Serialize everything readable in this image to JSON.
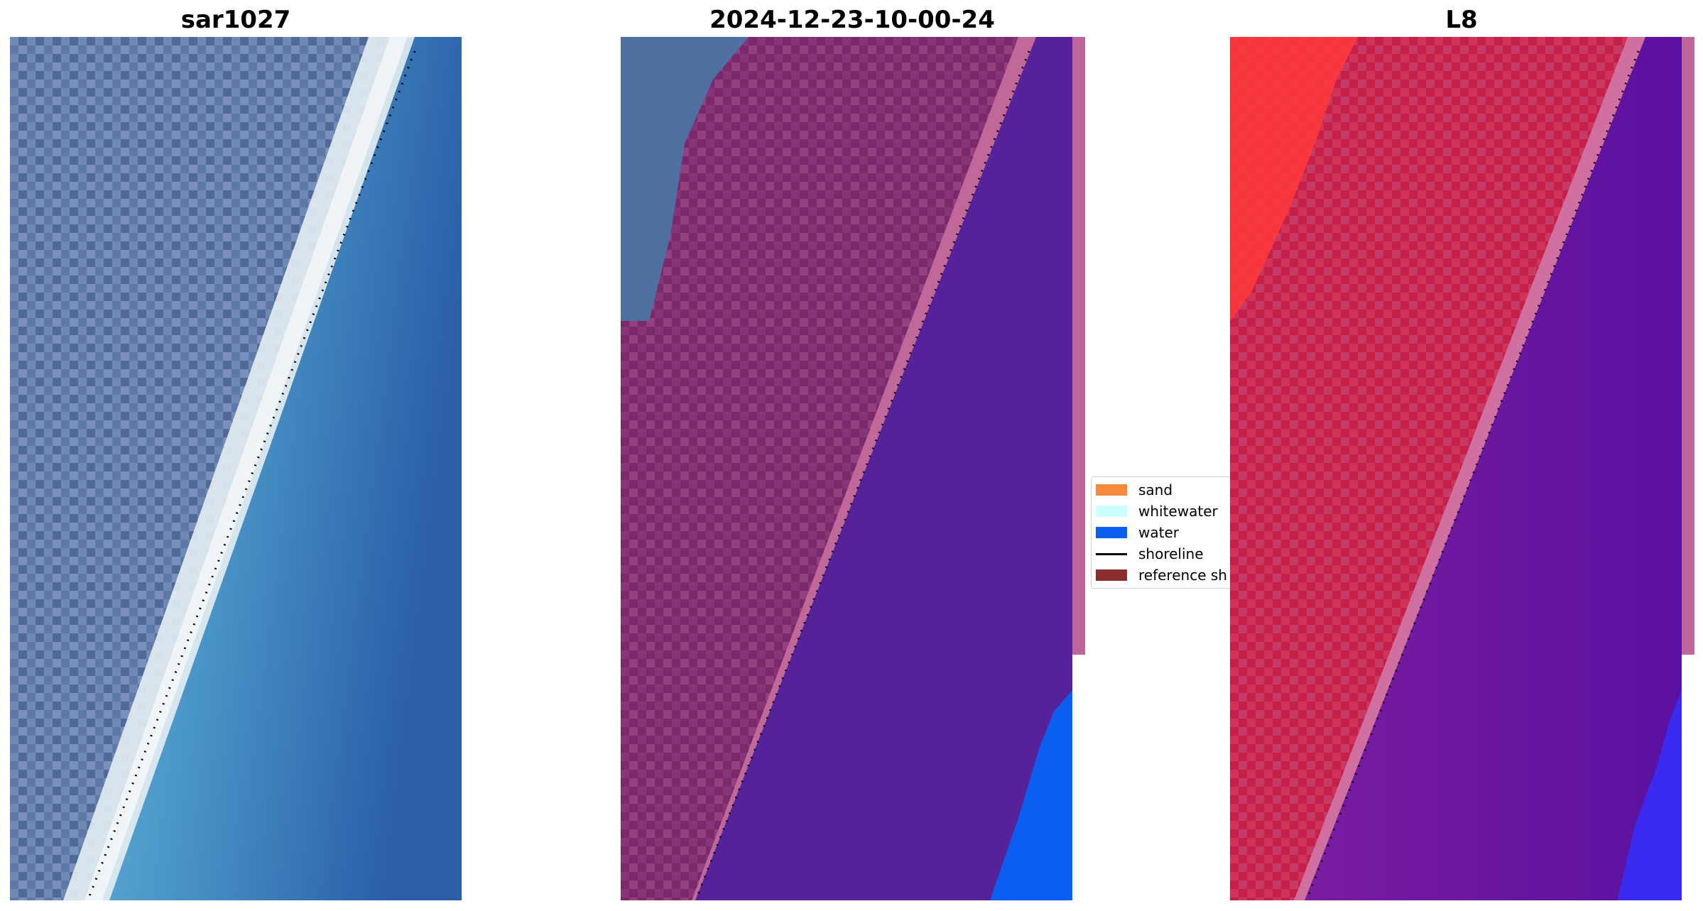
{
  "panels": [
    {
      "title": "sar1027"
    },
    {
      "title": "2024-12-23-10-00-24"
    },
    {
      "title": "L8"
    }
  ],
  "legend": {
    "items": [
      {
        "label": "sand",
        "color": "#f58a3c",
        "kind": "patch"
      },
      {
        "label": "whitewater",
        "color": "#ccffff",
        "kind": "patch"
      },
      {
        "label": "water",
        "color": "#0a5ff0",
        "kind": "patch"
      },
      {
        "label": "shoreline",
        "color": "#000000",
        "kind": "line"
      },
      {
        "label": "reference sh",
        "color": "#8b2d2d",
        "kind": "patch"
      }
    ]
  },
  "colors": {
    "panel1_land": "#5d79a8",
    "panel1_beach": "#e8f0f4",
    "panel1_water_near": "#5aa8d0",
    "panel1_water_far": "#2b5fa8",
    "panel2_land": "#7a2a6a",
    "panel2_land_exposed": "#4f6fa0",
    "panel2_beach": "#c0689a",
    "panel2_water": "#55229a",
    "panel2_water_edge": "#0a5ff0",
    "panel3_land": "#c4204a",
    "panel3_land_bright": "#ff3a3a",
    "panel3_beach": "#d070a0",
    "panel3_water": "#5a10a0",
    "panel3_water_edge": "#3a2af0",
    "shoreline": "#000000"
  }
}
